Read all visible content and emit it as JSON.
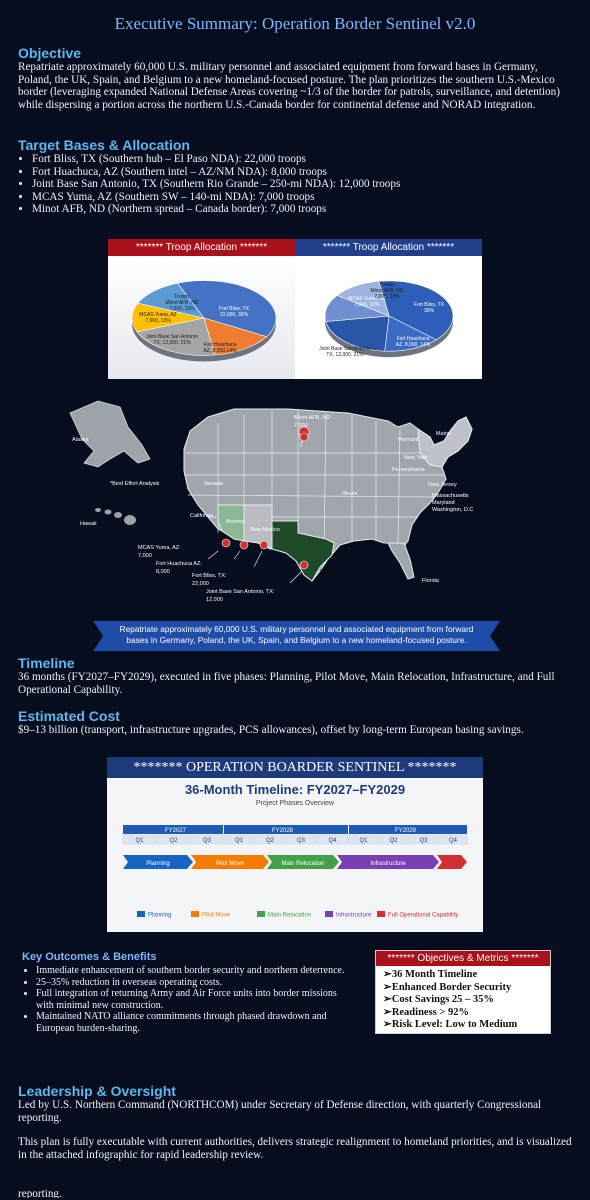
{
  "title": "Executive Summary: Operation Border Sentinel v2.0",
  "objective": {
    "heading": "Objective",
    "text": "Repatriate approximately 60,000 U.S. military personnel and associated equipment from forward bases in Germany, Poland, the UK, Spain, and Belgium to a new homeland-focused posture. The plan prioritizes the southern U.S.-Mexico border (leveraging expanded National Defense Areas covering ~1/3 of the border for patrols, surveillance, and detention) while dispersing a portion across the northern U.S.-Canada border for continental defense and NORAD integration."
  },
  "targets": {
    "heading": "Target Bases & Allocation",
    "items": [
      "Fort Bliss, TX (Southern hub – El Paso NDA): 22,000 troops",
      "Fort Huachuca, AZ (Southern intel – AZ/NM NDA): 8,000 troops",
      "Joint Base San Antonio, TX (Southern Rio Grande – 250-mi NDA): 12,000 troops",
      "MCAS Yuma, AZ (Southern SW – 140-mi NDA): 7,000 troops",
      "Minot AFB, ND (Northern spread – Canada border): 7,000 troops"
    ]
  },
  "chart_data": [
    {
      "type": "pie",
      "title": "******* Troop Allocation *******",
      "categories": [
        "Fort Bliss, TX",
        "Fort Huachuca, AZ",
        "Joint Base San Antonio, TX",
        "MCAS Yuma, AZ",
        "Troops, Minot AFB, ND"
      ],
      "values": [
        22000,
        8000,
        12000,
        7000,
        7000
      ],
      "labels": [
        "Fort Bliss, TX, 22,000, 39%",
        "Fort Huachuca, AZ, 8,000,14%",
        "Joint Base San Antonio, TX, 12,000, 21%",
        "MCAS Yuma, AZ, 7,000, 13%",
        "Troops, Minot AFB, ND, 7,000, 13%"
      ],
      "colors": [
        "#4472c4",
        "#ed7d31",
        "#a5a5a5",
        "#ffc000",
        "#5b9bd5"
      ]
    },
    {
      "type": "pie",
      "title": "******* Troop Allocation *******",
      "categories": [
        "Fort Bliss, TX",
        "Fort Huachuca, AZ",
        "Joint Base San Antonio, TX",
        "MCAS Yuma, AZ",
        "Troops, Minot AFB, ND"
      ],
      "values": [
        22000,
        8000,
        12000,
        7000,
        7000
      ],
      "labels": [
        "Fort Bliss, TX, 39%",
        "Fort Huachuca, AZ, 8,000, 14%",
        "Joint Base San Antonio, TX, 12,000, 21%",
        "MCAS Yuma, AZ, 7,000, 13%",
        "Troops, Minot AFB, ND, 7,000, 13%"
      ],
      "colors": [
        "#2e5fb8",
        "#3a6cc4",
        "#2a56a8",
        "#6f8fd0",
        "#9fb3e0"
      ]
    }
  ],
  "map": {
    "note": "*Best Effort Analysis",
    "states": [
      "Alaska",
      "Hawaii",
      "Nevada",
      "California",
      "Arizona",
      "New Mexico",
      "Texas",
      "Illinois",
      "Florida",
      "Vermont",
      "Maine",
      "New York",
      "Pennsylvania",
      "New Jersey",
      "Massachusetts",
      "Maryland",
      "Washington, D.C"
    ],
    "pins": [
      {
        "name": "Minot AFB, ND",
        "value": "7,000"
      },
      {
        "name": "MCAS Yuma, AZ:",
        "value": "7,000"
      },
      {
        "name": "Fort Huachuca AZ:",
        "value": "8,000"
      },
      {
        "name": "Fort Bliss, TX:",
        "value": "22,000"
      },
      {
        "name": "Joint Base San Antonio, TX:",
        "value": "12,000"
      }
    ],
    "banner": "Repatriate approximately 60,000 U.S. military personnel and associated equipment from forward bases in Germany, Poland, the UK, Spain, and Belgium to a new homeland-focused posture."
  },
  "timeline": {
    "heading": "Timeline",
    "text": "36 months (FY2027–FY2029), executed in five phases: Planning, Pilot Move, Main Relocation, Infrastructure, and Full Operational Capability."
  },
  "cost": {
    "heading": "Estimated Cost",
    "text": "$9–13 billion (transport, infrastructure upgrades, PCS allowances), offset by long-term European basing savings."
  },
  "infographic": {
    "banner": "******* OPERATION BOARDER SENTINEL *******",
    "title": "36-Month Timeline: FY2027–FY2029",
    "subtitle": "Project Phases Overview",
    "years": [
      "FY2027",
      "FY2028",
      "FY2029"
    ],
    "quarters": [
      "Q1",
      "Q2",
      "Q3",
      "Q1",
      "Q2",
      "Q3",
      "Q4",
      "Q1",
      "Q2",
      "Q3",
      "Q4"
    ],
    "phases": [
      {
        "name": "Planning",
        "color": "#1565c0"
      },
      {
        "name": "Pilot Move",
        "color": "#f57c00"
      },
      {
        "name": "Main Relocation",
        "color": "#43a047"
      },
      {
        "name": "Infrastructure",
        "color": "#7b3fb5"
      },
      {
        "name": "Full Operational Capability",
        "color": "#d32f2f"
      }
    ]
  },
  "outcomes": {
    "heading": "Key Outcomes & Benefits",
    "items": [
      "Immediate enhancement of southern border security and northern deterrence.",
      "25–35% reduction in overseas operating costs.",
      "Full integration of returning Army and Air Force units into border missions with minimal new construction.",
      "Maintained NATO alliance commitments through phased drawdown and European burden-sharing."
    ]
  },
  "metrics": {
    "heading": "******* Objectives & Metrics *******",
    "items": [
      "36 Month Timeline",
      "Enhanced Border Security",
      "Cost Savings 25 – 35%",
      "Readiness > 92%",
      "Risk Level: Low to Medium"
    ]
  },
  "leadership": {
    "heading": "Leadership & Oversight",
    "text1": "Led by U.S. Northern Command (NORTHCOM) under Secretary of Defense direction, with quarterly Congressional reporting.",
    "text2": "This plan is fully executable with current authorities, delivers strategic realignment to homeland priorities, and is visualized in the attached infographic for rapid leadership review.",
    "fragment": "reporting."
  }
}
